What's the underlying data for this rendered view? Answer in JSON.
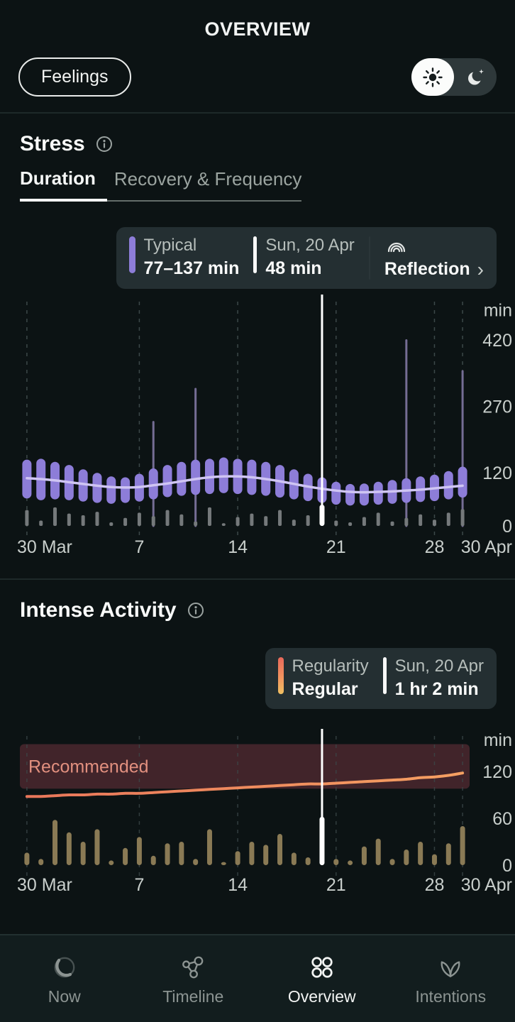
{
  "header": {
    "title": "OVERVIEW"
  },
  "controls": {
    "feelings_label": "Feelings"
  },
  "icons": {
    "theme_light": "sun-icon",
    "theme_dark": "moon-icon",
    "info": "info-circle-icon",
    "reflection": "spiral-icon",
    "chevron": "›"
  },
  "stress": {
    "title": "Stress",
    "tabs": [
      {
        "label": "Duration",
        "active": true
      },
      {
        "label": "Recovery & Frequency",
        "active": false
      }
    ],
    "tooltip": {
      "typical": {
        "label": "Typical",
        "value": "77–137 min"
      },
      "selected": {
        "label": "Sun, 20 Apr",
        "value": "48 min"
      },
      "reflection": {
        "label": "Reflection"
      }
    }
  },
  "activity": {
    "title": "Intense Activity",
    "tooltip": {
      "regularity": {
        "label": "Regularity",
        "value": "Regular"
      },
      "selected": {
        "label": "Sun, 20 Apr",
        "value": "1 hr 2 min"
      }
    }
  },
  "nav": {
    "items": [
      {
        "label": "Now",
        "icon": "now-ring-icon",
        "active": false
      },
      {
        "label": "Timeline",
        "icon": "timeline-molecule-icon",
        "active": false
      },
      {
        "label": "Overview",
        "icon": "overview-grid-icon",
        "active": true
      },
      {
        "label": "Intentions",
        "icon": "intentions-leaf-icon",
        "active": false
      }
    ]
  },
  "chart_data": [
    {
      "type": "bar",
      "subtype": "range-bar-with-trend",
      "title": "Stress Duration",
      "ylabel": "min",
      "yticks": [
        0,
        120,
        270,
        420
      ],
      "ylim": [
        0,
        440
      ],
      "x_tick_labels": [
        "30 Mar",
        "7",
        "14",
        "21",
        "28",
        "30 Apr"
      ],
      "x_tick_day_index": [
        0,
        8,
        15,
        22,
        29,
        31
      ],
      "selected_day_index": 21,
      "selected_date": "Sun, 20 Apr",
      "selected_value_min": 48,
      "typical_range_min": [
        77,
        137
      ],
      "range_low": [
        62,
        58,
        60,
        58,
        55,
        52,
        50,
        52,
        55,
        60,
        65,
        68,
        70,
        72,
        74,
        72,
        70,
        68,
        64,
        60,
        56,
        52,
        48,
        46,
        46,
        48,
        50,
        52,
        54,
        56,
        60,
        64
      ],
      "range_high": [
        150,
        152,
        145,
        138,
        128,
        120,
        112,
        110,
        118,
        130,
        138,
        145,
        150,
        152,
        155,
        152,
        150,
        145,
        138,
        128,
        118,
        110,
        100,
        95,
        96,
        100,
        104,
        108,
        112,
        116,
        124,
        134
      ],
      "spike_max": [
        null,
        null,
        null,
        null,
        null,
        null,
        null,
        null,
        null,
        235,
        null,
        null,
        310,
        null,
        null,
        null,
        null,
        null,
        null,
        null,
        null,
        null,
        null,
        null,
        null,
        null,
        null,
        420,
        null,
        null,
        null,
        350
      ],
      "daily_bar": [
        36,
        12,
        42,
        28,
        24,
        32,
        8,
        18,
        30,
        22,
        36,
        26,
        10,
        42,
        6,
        20,
        28,
        22,
        36,
        14,
        24,
        48,
        12,
        8,
        20,
        30,
        10,
        18,
        26,
        14,
        30,
        38
      ],
      "trend": [
        108,
        106,
        103,
        99,
        95,
        91,
        88,
        87,
        88,
        92,
        96,
        101,
        106,
        110,
        112,
        112,
        110,
        106,
        101,
        95,
        89,
        84,
        80,
        77,
        76,
        77,
        78,
        80,
        82,
        85,
        88,
        91
      ],
      "colors": {
        "bar": "#8D7DD8",
        "spike": "#756D94",
        "trend": "#CFC5F3",
        "daily": "#75797B",
        "selected": "#FFFFFF",
        "grid": "#3C4849",
        "axis_text": "#C9CFCC"
      }
    },
    {
      "type": "bar",
      "subtype": "bar-with-trend-and-band",
      "title": "Intense Activity",
      "ylabel": "min",
      "yticks": [
        0,
        60,
        120
      ],
      "ylim": [
        0,
        160
      ],
      "x_tick_labels": [
        "30 Mar",
        "7",
        "14",
        "21",
        "28",
        "30 Apr"
      ],
      "x_tick_day_index": [
        0,
        8,
        15,
        22,
        29,
        31
      ],
      "selected_day_index": 21,
      "selected_date": "Sun, 20 Apr",
      "selected_value_min": 62,
      "band": {
        "label": "Recommended",
        "range_min": [
          98,
          155
        ]
      },
      "values": [
        16,
        8,
        58,
        42,
        30,
        46,
        6,
        22,
        36,
        12,
        28,
        30,
        8,
        46,
        4,
        18,
        30,
        26,
        40,
        16,
        10,
        62,
        8,
        6,
        24,
        34,
        8,
        20,
        30,
        14,
        28,
        50
      ],
      "trend": [
        88,
        88,
        89,
        90,
        90,
        91,
        91,
        92,
        92,
        93,
        94,
        95,
        96,
        97,
        98,
        99,
        100,
        101,
        102,
        103,
        104,
        104,
        105,
        106,
        107,
        108,
        109,
        110,
        112,
        113,
        115,
        118
      ],
      "colors": {
        "bar": "#8A7A55",
        "trend_start": "#E8765A",
        "trend_end": "#F5A062",
        "band": "#46262D",
        "band_text": "#E2907F",
        "selected": "#FFFFFF",
        "grid": "#3C4849",
        "axis_text": "#C9CFCC"
      }
    }
  ]
}
